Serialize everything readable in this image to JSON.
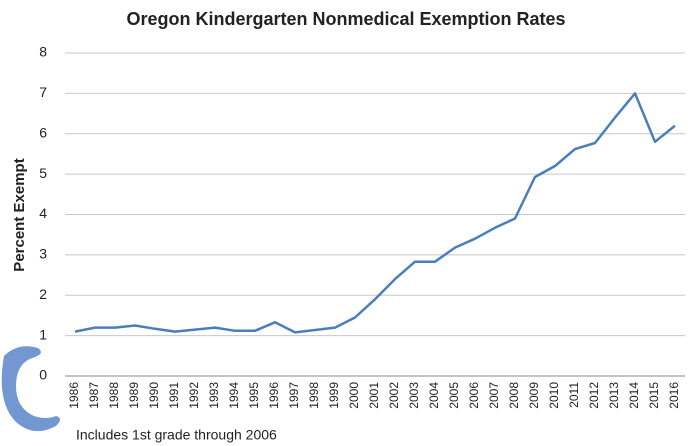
{
  "chart_data": {
    "type": "line",
    "title": "Oregon Kindergarten Nonmedical Exemption Rates",
    "y_label": "Percent Exempt",
    "annotation": "Includes 1st grade through 2006",
    "categories": [
      "1986",
      "1987",
      "1988",
      "1989",
      "1990",
      "1991",
      "1992",
      "1993",
      "1994",
      "1995",
      "1996",
      "1997",
      "1998",
      "1999",
      "2000",
      "2001",
      "2002",
      "2003",
      "2004",
      "2005",
      "2006",
      "2007",
      "2008",
      "2009",
      "2010",
      "2011",
      "2012",
      "2013",
      "2014",
      "2015",
      "2016"
    ],
    "values": [
      1.1,
      1.2,
      1.2,
      1.25,
      1.17,
      1.1,
      1.15,
      1.2,
      1.12,
      1.12,
      1.33,
      1.08,
      1.14,
      1.2,
      1.45,
      1.9,
      2.4,
      2.83,
      2.83,
      3.18,
      3.4,
      3.67,
      3.9,
      4.93,
      5.2,
      5.62,
      5.77,
      6.4,
      7.0,
      5.8,
      6.2
    ],
    "color": "#4a7ebb",
    "ylim": [
      0,
      8
    ],
    "yticks": [
      0,
      1,
      2,
      3,
      4,
      5,
      6,
      7,
      8
    ],
    "grid": true
  }
}
